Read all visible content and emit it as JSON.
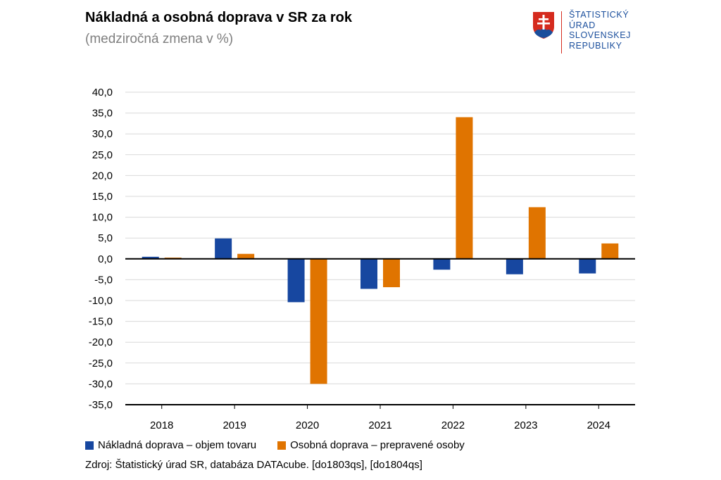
{
  "header": {
    "title": "Nákladná a osobná doprava v SR za rok",
    "subtitle": "(medziročná zmena v %)"
  },
  "logo": {
    "lines": [
      "ŠTATISTICKÝ",
      "ÚRAD",
      "SLOVENSKEJ",
      "REPUBLIKY"
    ],
    "colors": {
      "text": "#1a4e9c",
      "line": "#d52b1e",
      "shield_red": "#d52b1e",
      "shield_blue": "#1a4e9c"
    }
  },
  "chart_data": {
    "type": "bar",
    "title": "Nákladná a osobná doprava v SR za rok",
    "subtitle": "(medziročná zmena v %)",
    "xlabel": "",
    "ylabel": "",
    "categories": [
      "2018",
      "2019",
      "2020",
      "2021",
      "2022",
      "2023",
      "2024"
    ],
    "series": [
      {
        "name": "Nákladná doprava – objem tovaru",
        "color": "#1747a0",
        "values": [
          0.5,
          4.9,
          -10.4,
          -7.2,
          -2.6,
          -3.7,
          -3.5
        ]
      },
      {
        "name": "Osobná doprava – prepravené osoby",
        "color": "#e07400",
        "values": [
          0.3,
          1.2,
          -30.0,
          -6.8,
          34.0,
          12.4,
          3.7
        ]
      }
    ],
    "ylim": [
      -35,
      40
    ],
    "yticks": [
      "-35,0",
      "-30,0",
      "-25,0",
      "-20,0",
      "-15,0",
      "-10,0",
      "-5,0",
      "0,0",
      "5,0",
      "10,0",
      "15,0",
      "20,0",
      "25,0",
      "30,0",
      "35,0",
      "40,0"
    ],
    "grid": true,
    "legend_position": "bottom-left"
  },
  "source": "Zdroj: Štatistický úrad SR, databáza DATAcube. [do1803qs], [do1804qs]"
}
